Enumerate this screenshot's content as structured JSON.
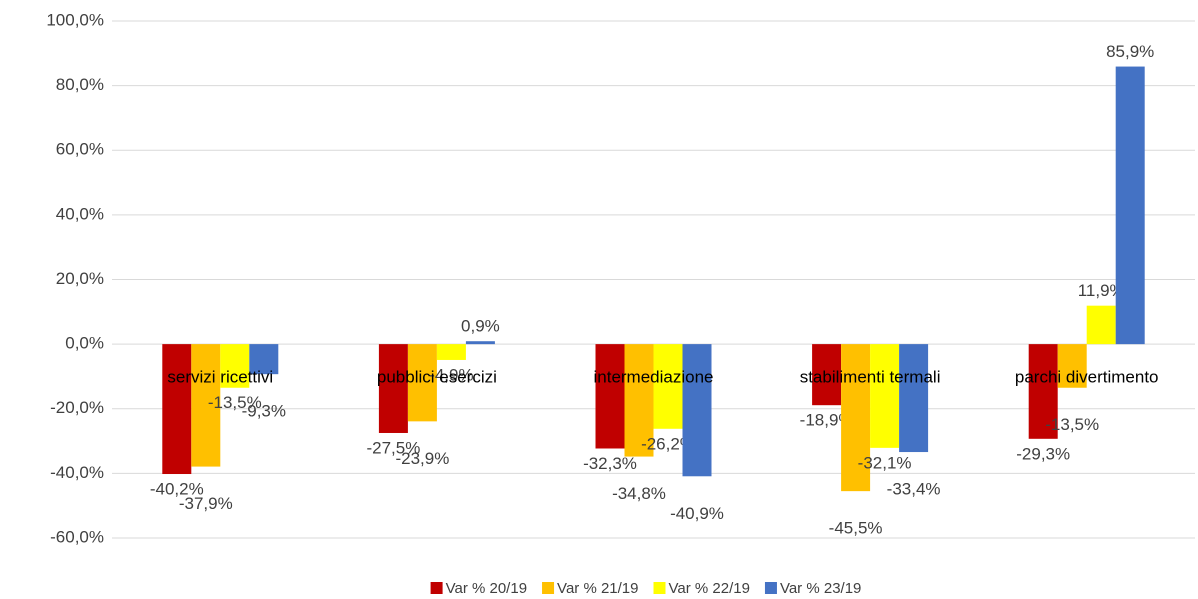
{
  "chart_data": {
    "type": "bar",
    "categories": [
      "servizi ricettivi",
      "pubblici esercizi",
      "intermediazione",
      "stabilimenti termali",
      "parchi divertimento"
    ],
    "series": [
      {
        "name": "Var % 20/19",
        "color": "#c00000",
        "values": [
          -40.2,
          -27.5,
          -32.3,
          -18.9,
          -29.3
        ],
        "value_labels": [
          "-40,2%",
          "-27,5%",
          "-32,3%",
          "-18,9%",
          "-29,3%"
        ]
      },
      {
        "name": "Var % 21/19",
        "color": "#ffc000",
        "values": [
          -37.9,
          -23.9,
          -34.8,
          -45.5,
          -13.5
        ],
        "value_labels": [
          "-37,9%",
          "-23,9%",
          "-34,8%",
          "-45,5%",
          "-13,5%"
        ]
      },
      {
        "name": "Var % 22/19",
        "color": "#ffff00",
        "values": [
          -13.5,
          -4.9,
          -26.2,
          -32.1,
          11.9
        ],
        "value_labels": [
          "-13,5%",
          "-4,9%",
          "-26,2%",
          "-32,1%",
          "11,9%"
        ]
      },
      {
        "name": "Var % 23/19",
        "color": "#4472c4",
        "values": [
          -9.3,
          0.9,
          -40.9,
          -33.4,
          85.9
        ],
        "value_labels": [
          "-9,3%",
          "0,9%",
          "-40,9%",
          "-33,4%",
          "85,9%"
        ]
      }
    ],
    "ylim": [
      -60,
      100
    ],
    "yticks": [
      {
        "value": -60,
        "label": "-60,0%"
      },
      {
        "value": -40,
        "label": "-40,0%"
      },
      {
        "value": -20,
        "label": "-20,0%"
      },
      {
        "value": 0,
        "label": "0,0%"
      },
      {
        "value": 20,
        "label": "20,0%"
      },
      {
        "value": 40,
        "label": "40,0%"
      },
      {
        "value": 60,
        "label": "60,0%"
      },
      {
        "value": 80,
        "label": "80,0%"
      },
      {
        "value": 100,
        "label": "100,0%"
      }
    ],
    "grid": true,
    "legend": "bottom"
  }
}
